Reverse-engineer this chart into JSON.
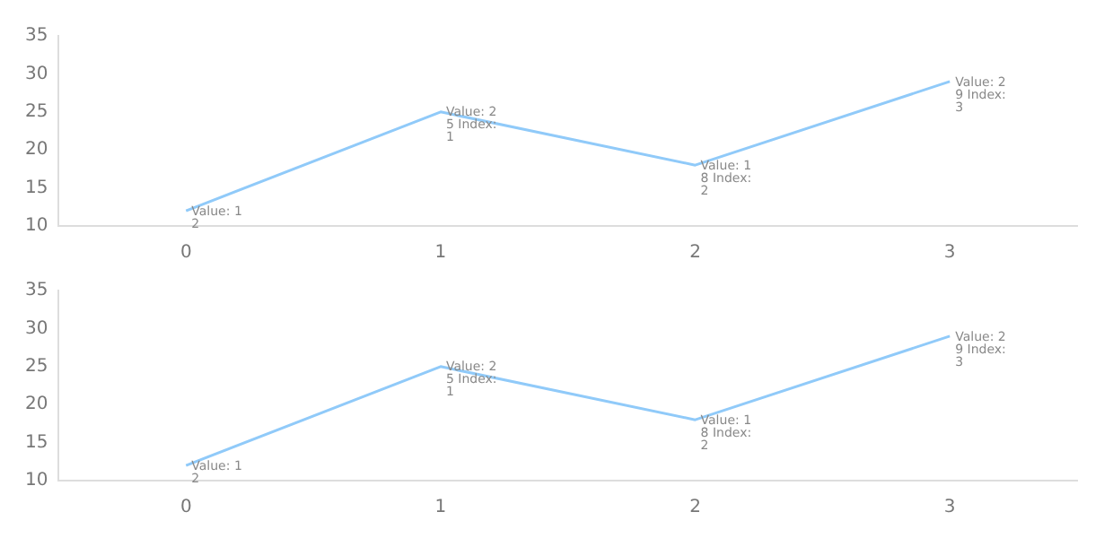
{
  "chart_data": [
    {
      "type": "line",
      "categories": [
        "0",
        "1",
        "2",
        "3"
      ],
      "series": [
        {
          "color": "#90caf9",
          "values": [
            12,
            25,
            18,
            29
          ],
          "value_labels": [
            "Value: 12",
            "Value: 25 Index: 1",
            "Value: 18 Index: 2",
            "Value: 29 Index: 3"
          ]
        }
      ],
      "ylim": [
        10,
        35
      ],
      "yticks": [
        10,
        15,
        20,
        25,
        30,
        35
      ],
      "grid": false,
      "legend": false,
      "marker": "none"
    },
    {
      "type": "line",
      "categories": [
        "0",
        "1",
        "2",
        "3"
      ],
      "series": [
        {
          "color": "#90caf9",
          "values": [
            12,
            25,
            18,
            29
          ],
          "value_labels": [
            "Value: 12",
            "Value: 25 Index: 1",
            "Value: 18 Index: 2",
            "Value: 29 Index: 3"
          ]
        }
      ],
      "ylim": [
        10,
        35
      ],
      "yticks": [
        10,
        15,
        20,
        25,
        30,
        35
      ],
      "grid": false,
      "legend": false,
      "marker": "none"
    }
  ]
}
